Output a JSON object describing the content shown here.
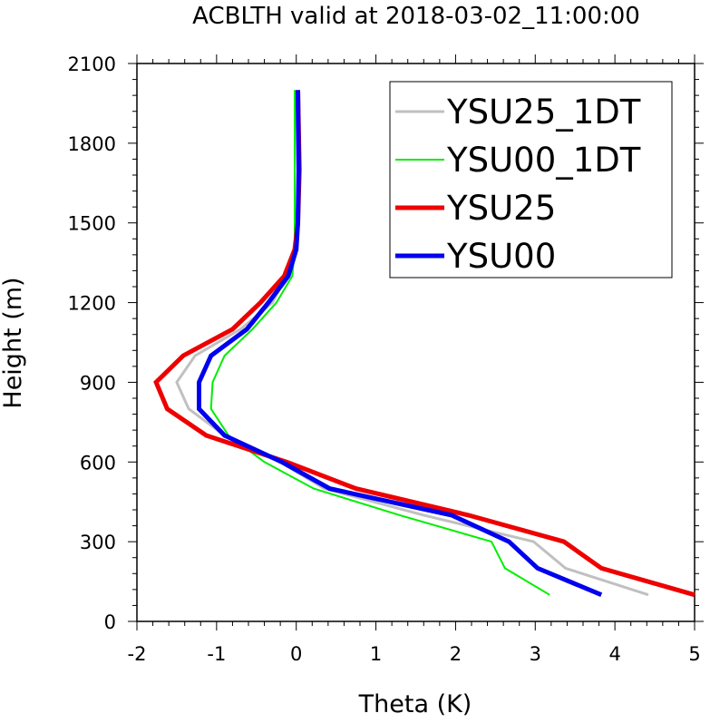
{
  "chart_data": {
    "type": "line",
    "title": "ACBLTH valid at 2018-03-02_11:00:00",
    "xlabel": "Theta (K)",
    "ylabel": "Height (m)",
    "xlim": [
      -2,
      5
    ],
    "ylim": [
      0,
      2100
    ],
    "xticks": [
      "-2",
      "-1",
      "0",
      "1",
      "2",
      "3",
      "4",
      "5"
    ],
    "yticks": [
      "0",
      "300",
      "600",
      "900",
      "1200",
      "1500",
      "1800",
      "2100"
    ],
    "legend_position": "top-right",
    "grid": false,
    "series": [
      {
        "name": "YSU25_1DT",
        "color": "#c0c0c0",
        "width": 3,
        "points": [
          [
            4.42,
            100
          ],
          [
            3.38,
            200
          ],
          [
            2.98,
            300
          ],
          [
            1.6,
            400
          ],
          [
            0.35,
            500
          ],
          [
            -0.2,
            600
          ],
          [
            -0.9,
            700
          ],
          [
            -1.35,
            800
          ],
          [
            -1.5,
            900
          ],
          [
            -1.27,
            1000
          ],
          [
            -0.7,
            1100
          ],
          [
            -0.3,
            1200
          ],
          [
            -0.12,
            1300
          ],
          [
            0.0,
            1400
          ],
          [
            0.02,
            1500
          ],
          [
            0.02,
            1700
          ],
          [
            0.0,
            2000
          ]
        ]
      },
      {
        "name": "YSU00_1DT",
        "color": "#00ee00",
        "width": 2,
        "points": [
          [
            3.18,
            100
          ],
          [
            2.62,
            200
          ],
          [
            2.45,
            300
          ],
          [
            1.3,
            400
          ],
          [
            0.22,
            500
          ],
          [
            -0.4,
            600
          ],
          [
            -0.85,
            700
          ],
          [
            -1.07,
            800
          ],
          [
            -1.05,
            900
          ],
          [
            -0.9,
            1000
          ],
          [
            -0.55,
            1100
          ],
          [
            -0.25,
            1200
          ],
          [
            -0.05,
            1300
          ],
          [
            -0.02,
            1400
          ],
          [
            -0.02,
            1500
          ],
          [
            -0.02,
            1700
          ],
          [
            -0.02,
            2000
          ]
        ]
      },
      {
        "name": "YSU25",
        "color": "#ee0000",
        "width": 5,
        "points": [
          [
            5.0,
            100
          ],
          [
            3.83,
            200
          ],
          [
            3.36,
            300
          ],
          [
            2.16,
            400
          ],
          [
            0.75,
            500
          ],
          [
            -0.12,
            600
          ],
          [
            -1.13,
            700
          ],
          [
            -1.62,
            800
          ],
          [
            -1.76,
            900
          ],
          [
            -1.42,
            1000
          ],
          [
            -0.8,
            1100
          ],
          [
            -0.45,
            1200
          ],
          [
            -0.15,
            1300
          ],
          [
            -0.02,
            1400
          ],
          [
            0.02,
            1500
          ],
          [
            0.04,
            1700
          ],
          [
            0.02,
            2000
          ]
        ]
      },
      {
        "name": "YSU00",
        "color": "#0000ee",
        "width": 5,
        "points": [
          [
            3.83,
            100
          ],
          [
            3.03,
            200
          ],
          [
            2.67,
            300
          ],
          [
            1.95,
            400
          ],
          [
            0.42,
            500
          ],
          [
            -0.18,
            600
          ],
          [
            -0.9,
            700
          ],
          [
            -1.22,
            800
          ],
          [
            -1.22,
            900
          ],
          [
            -1.07,
            1000
          ],
          [
            -0.62,
            1100
          ],
          [
            -0.35,
            1200
          ],
          [
            -0.1,
            1300
          ],
          [
            0.0,
            1400
          ],
          [
            0.02,
            1500
          ],
          [
            0.03,
            1700
          ],
          [
            0.02,
            2000
          ]
        ]
      }
    ]
  }
}
